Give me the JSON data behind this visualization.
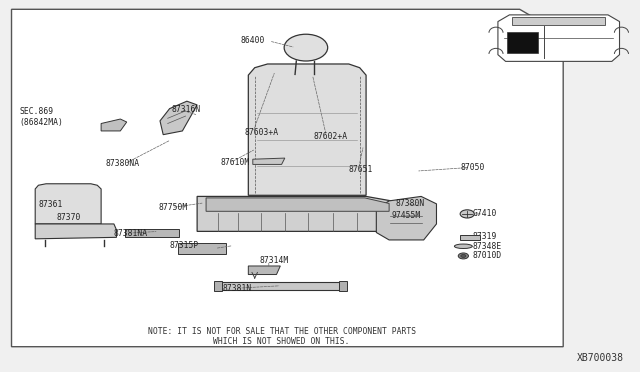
{
  "bg_color": "#f0f0f0",
  "border_color": "#555555",
  "note_line1": "NOTE: IT IS NOT FOR SALE THAT THE OTHER COMPONENT PARTS",
  "note_line2": "WHICH IS NOT SHOWED ON THIS.",
  "part_id": "XB700038",
  "label_positions": {
    "86400": [
      0.395,
      0.89,
      "center"
    ],
    "87316N": [
      0.268,
      0.705,
      "left"
    ],
    "SEC.869\n(86842MA)": [
      0.03,
      0.685,
      "left"
    ],
    "87603+A": [
      0.382,
      0.644,
      "left"
    ],
    "87602+A": [
      0.49,
      0.634,
      "left"
    ],
    "87610M": [
      0.345,
      0.563,
      "left"
    ],
    "87651": [
      0.545,
      0.545,
      "left"
    ],
    "87050": [
      0.72,
      0.55,
      "left"
    ],
    "87380NA": [
      0.165,
      0.56,
      "left"
    ],
    "87370": [
      0.088,
      0.415,
      "left"
    ],
    "87361": [
      0.06,
      0.45,
      "left"
    ],
    "87750M": [
      0.248,
      0.442,
      "left"
    ],
    "87381NA": [
      0.178,
      0.373,
      "left"
    ],
    "97455M": [
      0.612,
      0.42,
      "left"
    ],
    "87380N": [
      0.618,
      0.453,
      "left"
    ],
    "G7410": [
      0.738,
      0.425,
      "left"
    ],
    "87315P": [
      0.265,
      0.34,
      "left"
    ],
    "87314M": [
      0.405,
      0.3,
      "left"
    ],
    "87319": [
      0.738,
      0.365,
      "left"
    ],
    "87348E": [
      0.738,
      0.338,
      "left"
    ],
    "87010D": [
      0.738,
      0.312,
      "left"
    ],
    "87381N": [
      0.348,
      0.225,
      "left"
    ]
  },
  "leader_lines": [
    [
      0.42,
      0.89,
      0.462,
      0.872
    ],
    [
      0.395,
      0.644,
      0.43,
      0.81
    ],
    [
      0.51,
      0.634,
      0.488,
      0.8
    ],
    [
      0.36,
      0.563,
      0.4,
      0.6
    ],
    [
      0.56,
      0.545,
      0.568,
      0.61
    ],
    [
      0.735,
      0.55,
      0.65,
      0.54
    ],
    [
      0.282,
      0.705,
      0.31,
      0.69
    ],
    [
      0.195,
      0.56,
      0.268,
      0.625
    ],
    [
      0.268,
      0.442,
      0.32,
      0.455
    ],
    [
      0.625,
      0.42,
      0.66,
      0.42
    ],
    [
      0.635,
      0.453,
      0.66,
      0.445
    ],
    [
      0.755,
      0.425,
      0.738,
      0.425
    ],
    [
      0.42,
      0.3,
      0.42,
      0.278
    ],
    [
      0.365,
      0.34,
      0.335,
      0.332
    ],
    [
      0.368,
      0.225,
      0.44,
      0.232
    ],
    [
      0.198,
      0.373,
      0.248,
      0.378
    ]
  ]
}
